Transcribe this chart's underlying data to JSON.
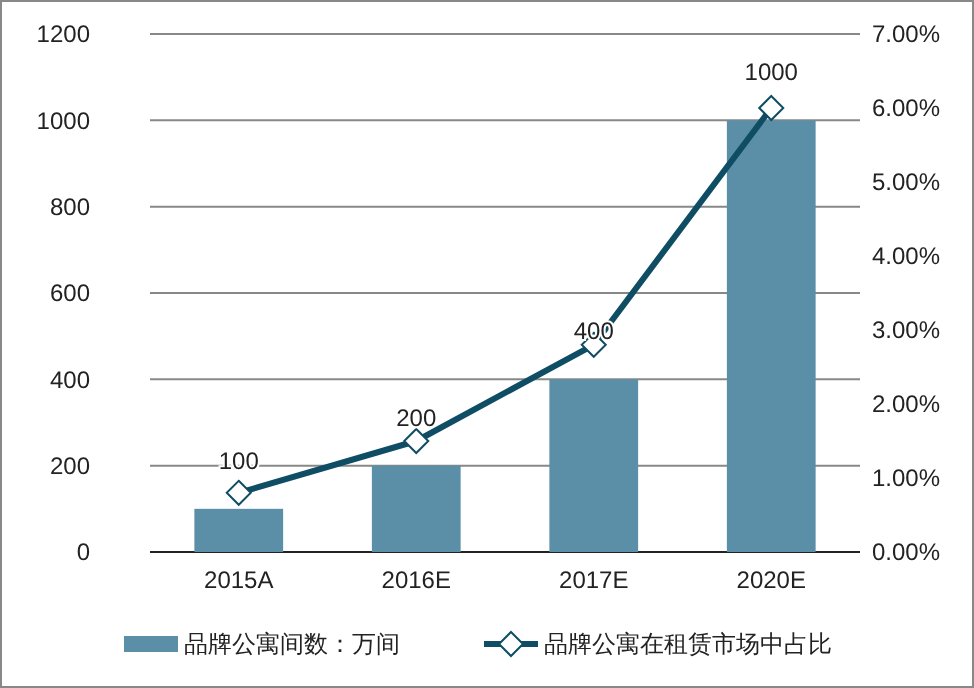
{
  "chart_data": {
    "type": "bar",
    "categories": [
      "2015A",
      "2016E",
      "2017E",
      "2020E"
    ],
    "series": [
      {
        "name": "品牌公寓间数：万间",
        "color": "#5b8fa8",
        "values": [
          100,
          200,
          400,
          1000
        ],
        "value_labels": [
          "100",
          "200",
          "400",
          "1000"
        ]
      },
      {
        "name": "品牌公寓在租赁市场中占比",
        "type": "line",
        "axis": "y2",
        "color": "#0e4d64",
        "marker": "diamond",
        "values": [
          0.8,
          1.5,
          2.8,
          6.0
        ]
      }
    ],
    "ylim": [
      0,
      1200
    ],
    "yticks": [
      0,
      200,
      400,
      600,
      800,
      1000,
      1200
    ],
    "y2lim": [
      0,
      7
    ],
    "y2ticks": [
      {
        "value": 0,
        "label": "0.00%"
      },
      {
        "value": 1,
        "label": "1.00%"
      },
      {
        "value": 2,
        "label": "2.00%"
      },
      {
        "value": 3,
        "label": "3.00%"
      },
      {
        "value": 4,
        "label": "4.00%"
      },
      {
        "value": 5,
        "label": "5.00%"
      },
      {
        "value": 6,
        "label": "6.00%"
      },
      {
        "value": 7,
        "label": "7.00%"
      }
    ],
    "grid": "y",
    "legend": "bottom"
  }
}
